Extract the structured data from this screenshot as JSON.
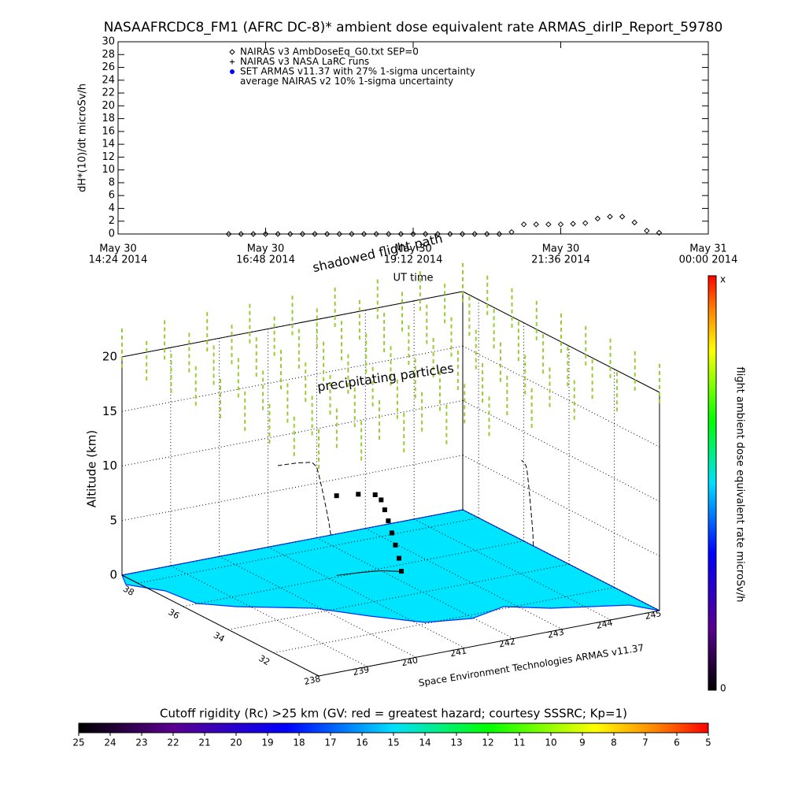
{
  "chart_data": [
    {
      "type": "line",
      "title": "NASAAFRCDC8_FM1 (AFRC DC-8)* ambient dose equivalent rate ARMAS_dirIP_Report_59780",
      "x_label": "UT time",
      "y_label": "dH*(10)/dt microSv/h",
      "x": [
        "2014-05-30 16:12",
        "2014-05-30 16:24",
        "2014-05-30 16:36",
        "2014-05-30 16:48",
        "2014-05-30 17:00",
        "2014-05-30 17:12",
        "2014-05-30 17:24",
        "2014-05-30 17:36",
        "2014-05-30 17:48",
        "2014-05-30 18:00",
        "2014-05-30 18:12",
        "2014-05-30 18:24",
        "2014-05-30 18:36",
        "2014-05-30 18:48",
        "2014-05-30 19:00",
        "2014-05-30 19:12",
        "2014-05-30 19:24",
        "2014-05-30 19:36",
        "2014-05-30 19:48",
        "2014-05-30 20:00",
        "2014-05-30 20:12",
        "2014-05-30 20:24",
        "2014-05-30 20:36",
        "2014-05-30 20:48",
        "2014-05-30 21:00",
        "2014-05-30 21:12",
        "2014-05-30 21:24",
        "2014-05-30 21:36",
        "2014-05-30 21:48",
        "2014-05-30 22:00",
        "2014-05-30 22:12",
        "2014-05-30 22:24",
        "2014-05-30 22:36",
        "2014-05-30 22:48",
        "2014-05-30 23:00",
        "2014-05-30 23:12"
      ],
      "series": [
        {
          "name": "NAIRAS v3 AmbDoseEq_G0.txt SEP=0",
          "marker": "diamond",
          "color": "#000000",
          "values": [
            0,
            0,
            0,
            0,
            0,
            0,
            0,
            0,
            0,
            0,
            0,
            0,
            0,
            0,
            0,
            0,
            0,
            0,
            0,
            0,
            0,
            0,
            0,
            0.3,
            1.5,
            1.5,
            1.5,
            1.5,
            1.6,
            1.7,
            2.4,
            2.7,
            2.7,
            1.8,
            0.5,
            0.2
          ]
        }
      ],
      "other_legend_entries": [
        {
          "name": "NAIRAS v3 NASA LaRC runs",
          "marker": "plus",
          "color": "#000000"
        },
        {
          "name": "SET ARMAS v11.37 with 27% 1-sigma uncertainty",
          "marker": "dot",
          "color": "#0000ff"
        },
        {
          "name": "average NAIRAS v2 10% 1-sigma uncertainty",
          "marker": "none",
          "color": "#000000"
        }
      ],
      "xlim": [
        "2014-05-30 14:24",
        "2014-05-31 00:00"
      ],
      "xticks": [
        {
          "value": "2014-05-30 14:24",
          "label": [
            "May 30",
            "14:24 2014"
          ]
        },
        {
          "value": "2014-05-30 16:48",
          "label": [
            "May 30",
            "16:48 2014"
          ]
        },
        {
          "value": "2014-05-30 19:12",
          "label": [
            "May 30",
            "19:12 2014"
          ]
        },
        {
          "value": "2014-05-30 21:36",
          "label": [
            "May 30",
            "21:36 2014"
          ]
        },
        {
          "value": "2014-05-31 00:00",
          "label": [
            "May 31",
            "00:00 2014"
          ]
        }
      ],
      "ylim": [
        0,
        30
      ],
      "yticks": [
        0,
        2,
        4,
        6,
        8,
        10,
        12,
        14,
        16,
        18,
        20,
        22,
        24,
        26,
        28,
        30
      ]
    },
    {
      "type": "flight-3d",
      "annotations": [
        "shadowed flight path",
        "precipitating particles"
      ],
      "x_label": "Space Environment Technologies ARMAS v11.37",
      "z_label": "Altitude (km)",
      "xlim": [
        238,
        245
      ],
      "xticks": [
        238,
        239,
        240,
        241,
        242,
        243,
        244,
        245
      ],
      "ylim": [
        30,
        38.7
      ],
      "yticks": [
        32,
        34,
        36,
        38
      ],
      "zlim": [
        0,
        20
      ],
      "zticks": [
        0,
        5,
        10,
        15,
        20
      ],
      "lon": [
        242.29,
        242.25,
        242.2,
        242.15,
        242.1,
        242.05,
        242.0,
        241.9,
        241.6,
        241.2
      ],
      "lat": [
        35.58,
        35.6,
        35.65,
        35.7,
        35.75,
        35.8,
        35.85,
        35.9,
        36.0,
        36.1
      ],
      "alt": [
        0,
        1.2,
        2.4,
        3.5,
        4.6,
        5.6,
        6.5,
        7,
        7.2,
        7.3
      ],
      "colorbar": {
        "label": "flight ambient dose equivalent rate microSv/h",
        "top_label": "x",
        "bottom_label": "0"
      }
    },
    {
      "type": "colorbar",
      "title": "Cutoff rigidity (Rc) >25 km (GV: red = greatest hazard; courtesy SSSRC; Kp=1)",
      "xlim": [
        25,
        5
      ],
      "xticks": [
        25,
        24,
        23,
        22,
        21,
        20,
        19,
        18,
        17,
        16,
        15,
        14,
        13,
        12,
        11,
        10,
        9,
        8,
        7,
        6,
        5
      ]
    }
  ]
}
